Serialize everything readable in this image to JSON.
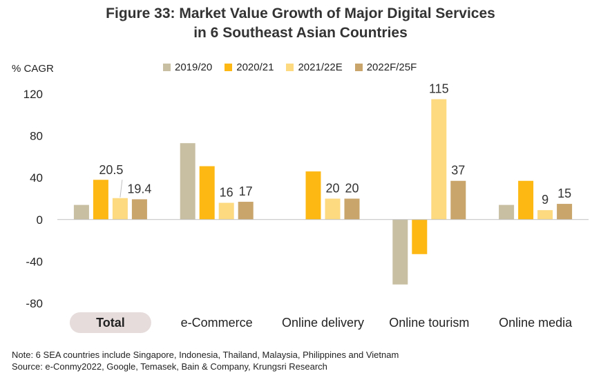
{
  "title_line1": "Figure 33: Market Value Growth of Major Digital Services",
  "title_line2": "in 6 Southeast Asian Countries",
  "note": "Note: 6 SEA countries include Singapore, Indonesia, Thailand, Malaysia, Philippines  and Vietnam",
  "source": "Source: e-Conmy2022, Google, Temasek, Bain & Company, Krungsri Research",
  "chart_data": {
    "type": "bar",
    "ylabel": "% CAGR",
    "ylim": [
      -80,
      120
    ],
    "yticks": [
      120,
      80,
      40,
      0,
      -40,
      -80
    ],
    "grid": false,
    "legend_position": "top",
    "categories": [
      "Total",
      "e-Commerce",
      "Online delivery",
      "Online tourism",
      "Online media"
    ],
    "highlighted_category": "Total",
    "highlight_color": "#e6dcdc",
    "series": [
      {
        "name": "2019/20",
        "color": "#c8bfa2",
        "values": [
          14,
          73,
          null,
          -62,
          14
        ]
      },
      {
        "name": "2020/21",
        "color": "#fdb813",
        "values": [
          38,
          51,
          46,
          -33,
          37
        ]
      },
      {
        "name": "2021/22E",
        "color": "#fdd97f",
        "values": [
          20.5,
          16,
          20,
          115,
          9
        ]
      },
      {
        "name": "2022F/25F",
        "color": "#c9a46b",
        "values": [
          19.4,
          17,
          20,
          37,
          15
        ]
      }
    ],
    "data_labels": [
      {
        "category": "Total",
        "series": "2021/22E",
        "text": "20.5"
      },
      {
        "category": "Total",
        "series": "2022F/25F",
        "text": "19.4"
      },
      {
        "category": "e-Commerce",
        "series": "2021/22E",
        "text": "16"
      },
      {
        "category": "e-Commerce",
        "series": "2022F/25F",
        "text": "17"
      },
      {
        "category": "Online delivery",
        "series": "2021/22E",
        "text": "20"
      },
      {
        "category": "Online delivery",
        "series": "2022F/25F",
        "text": "20"
      },
      {
        "category": "Online tourism",
        "series": "2021/22E",
        "text": "115"
      },
      {
        "category": "Online tourism",
        "series": "2022F/25F",
        "text": "37"
      },
      {
        "category": "Online media",
        "series": "2021/22E",
        "text": "9"
      },
      {
        "category": "Online media",
        "series": "2022F/25F",
        "text": "15"
      }
    ]
  }
}
